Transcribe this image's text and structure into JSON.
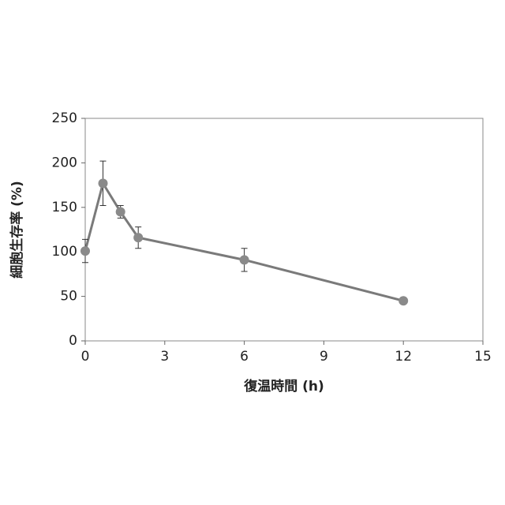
{
  "chart_data": {
    "type": "line",
    "x": [
      0,
      0.67,
      1.33,
      2,
      6,
      12
    ],
    "values": [
      101,
      177,
      145,
      116,
      91,
      45
    ],
    "errors": [
      13,
      25,
      7,
      12,
      13,
      3
    ],
    "color": "#7a7a7a",
    "xlabel": "復温時間 (h)",
    "ylabel": "細胞生存率 (%)",
    "xlim": [
      0,
      15
    ],
    "xticks": [
      0,
      3,
      6,
      9,
      12,
      15
    ],
    "ylim": [
      0,
      250
    ],
    "yticks": [
      0,
      50,
      100,
      150,
      200,
      250
    ]
  }
}
